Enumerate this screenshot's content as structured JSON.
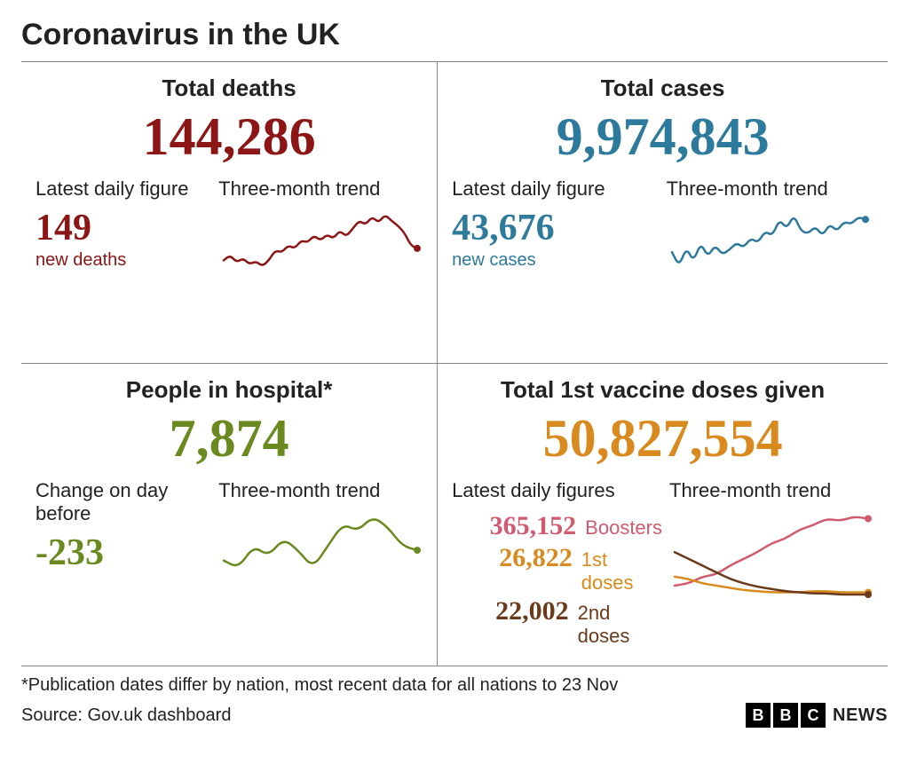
{
  "title": "Coronavirus in the UK",
  "colors": {
    "deaths": "#8c1515",
    "cases": "#2d7a9c",
    "hospital": "#6a8a1f",
    "vaccines": "#d98a1e",
    "boosters": "#d05a6e",
    "dose1": "#d98a1e",
    "dose2": "#6b3a1a",
    "text": "#222222",
    "rule": "#888888",
    "bg": "#ffffff"
  },
  "panels": {
    "deaths": {
      "title": "Total deaths",
      "total": "144,286",
      "daily_label": "Latest daily figure",
      "daily_value": "149",
      "daily_caption": "new deaths",
      "trend_label": "Three-month trend",
      "spark": {
        "stroke_width": 2.5,
        "end_dot": true,
        "points": [
          40,
          45,
          38,
          42,
          36,
          39,
          34,
          40,
          50,
          48,
          55,
          52,
          60,
          58,
          65,
          60,
          66,
          62,
          70,
          64,
          72,
          80,
          76,
          84,
          78,
          86,
          80,
          75,
          68,
          55,
          52
        ]
      }
    },
    "cases": {
      "title": "Total cases",
      "total": "9,974,843",
      "daily_label": "Latest daily figure",
      "daily_value": "43,676",
      "daily_caption": "new cases",
      "trend_label": "Three-month trend",
      "spark": {
        "stroke_width": 2.5,
        "end_dot": true,
        "points": [
          42,
          30,
          46,
          34,
          50,
          38,
          48,
          40,
          44,
          50,
          46,
          54,
          50,
          60,
          56,
          70,
          62,
          74,
          60,
          58,
          64,
          56,
          66,
          60,
          68,
          66,
          72,
          70
        ]
      }
    },
    "hospital": {
      "title": "People in hospital*",
      "total": "7,874",
      "daily_label": "Change on day before",
      "daily_value": "-233",
      "daily_caption": "",
      "trend_label": "Three-month trend",
      "spark": {
        "stroke_width": 2.5,
        "end_dot": true,
        "points": [
          45,
          40,
          55,
          48,
          60,
          52,
          40,
          55,
          70,
          65,
          75,
          68,
          55,
          52
        ]
      }
    },
    "vaccines": {
      "title": "Total 1st vaccine doses given",
      "total": "50,827,554",
      "daily_label": "Latest daily figures",
      "trend_label": "Three-month trend",
      "breakdown": [
        {
          "value": "365,152",
          "label": "Boosters",
          "color_key": "boosters"
        },
        {
          "value": "26,822",
          "label": "1st doses",
          "color_key": "dose1"
        },
        {
          "value": "22,002",
          "label": "2nd doses",
          "color_key": "dose2"
        }
      ],
      "spark_multi": {
        "stroke_width": 2.5,
        "series": [
          {
            "color_key": "boosters",
            "end_dot": true,
            "points": [
              20,
              22,
              28,
              30,
              38,
              44,
              50,
              58,
              62,
              70,
              74,
              80,
              78,
              82,
              80
            ]
          },
          {
            "color_key": "dose1",
            "end_dot": true,
            "points": [
              28,
              26,
              22,
              20,
              18,
              16,
              15,
              14,
              14,
              14,
              15,
              15,
              14,
              14,
              14
            ]
          },
          {
            "color_key": "dose2",
            "end_dot": true,
            "points": [
              50,
              44,
              38,
              32,
              26,
              22,
              19,
              17,
              15,
              14,
              13,
              13,
              12,
              12,
              12
            ]
          }
        ]
      }
    }
  },
  "footnote": "*Publication dates differ by nation, most recent data for all nations to 23 Nov",
  "source": "Source: Gov.uk dashboard",
  "brand": {
    "blocks": [
      "B",
      "B",
      "C"
    ],
    "text": "NEWS"
  }
}
